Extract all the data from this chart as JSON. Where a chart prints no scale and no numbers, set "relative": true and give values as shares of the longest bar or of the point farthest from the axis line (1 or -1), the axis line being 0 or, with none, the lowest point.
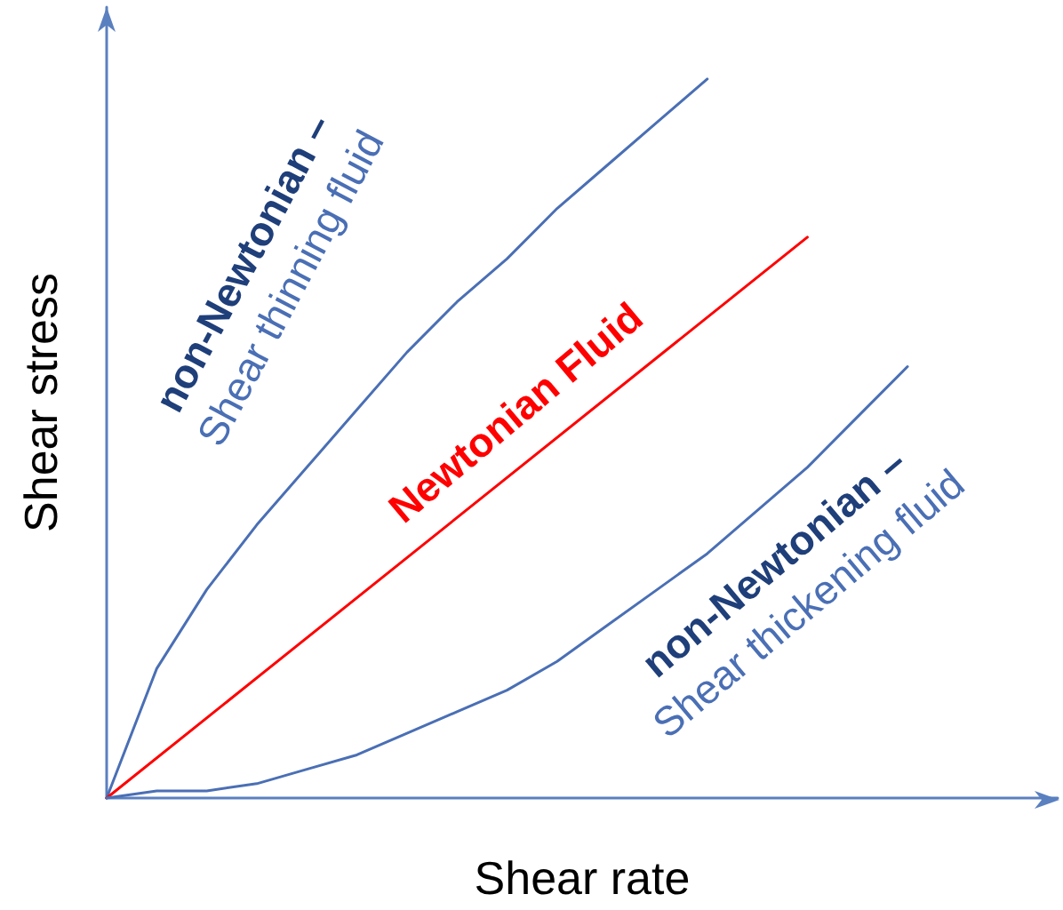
{
  "chart_data": {
    "type": "line",
    "relative": true,
    "xlabel": "Shear rate",
    "ylabel": "Shear stress",
    "legend": false,
    "marker": "none",
    "categories": [
      null,
      null,
      null,
      null,
      null,
      null,
      null,
      null,
      null,
      null,
      null,
      null,
      null,
      null,
      null,
      null,
      null,
      null,
      null,
      null
    ],
    "series": [
      {
        "name": "non-Newtonian –\nShear thinning fluid",
        "color": "#4a6fb5",
        "values": [
          0,
          0.18,
          0.29,
          0.38,
          0.46,
          0.54,
          0.62,
          0.69,
          0.75,
          0.82,
          0.88,
          0.94,
          1,
          null,
          null,
          null,
          null,
          null,
          null,
          null
        ]
      },
      {
        "name": "Newtonian Fluid",
        "color": "#ff0000",
        "values": [
          0,
          null,
          null,
          null,
          null,
          null,
          null,
          null,
          null,
          null,
          null,
          null,
          null,
          null,
          0.78,
          null,
          null,
          null,
          null,
          null
        ]
      },
      {
        "name": "non-Newtonian –\nShear thickening fluid",
        "color": "#4a6fb5",
        "values": [
          0,
          0.01,
          0.01,
          0.02,
          0.04,
          0.06,
          0.09,
          0.12,
          0.15,
          0.19,
          0.24,
          0.29,
          0.34,
          0.4,
          0.46,
          0.53,
          0.6,
          null,
          null,
          null
        ]
      }
    ]
  }
}
